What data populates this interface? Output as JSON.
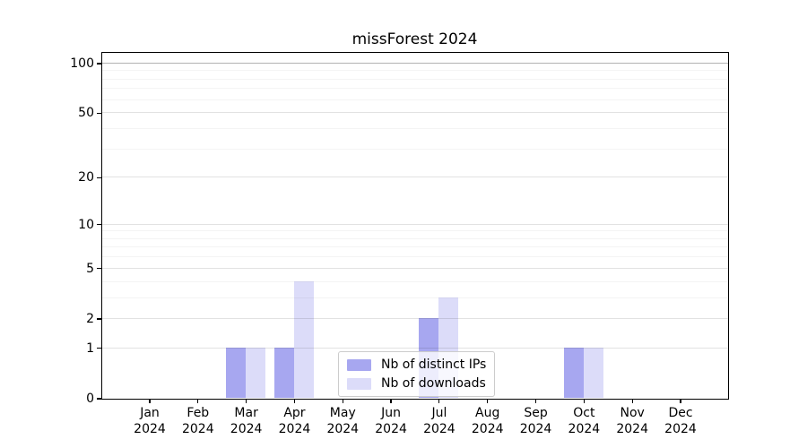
{
  "chart_data": {
    "type": "bar",
    "title": "missForest 2024",
    "x_months": [
      "Jan",
      "Feb",
      "Mar",
      "Apr",
      "May",
      "Jun",
      "Jul",
      "Aug",
      "Sep",
      "Oct",
      "Nov",
      "Dec"
    ],
    "x_year": "2024",
    "series": [
      {
        "name": "Nb of distinct IPs",
        "color": "#a7a7f0",
        "values": [
          0,
          0,
          1,
          1,
          0,
          0,
          2,
          0,
          0,
          1,
          0,
          0
        ]
      },
      {
        "name": "Nb of downloads",
        "color": "#dcdcf9",
        "values": [
          0,
          0,
          1,
          4,
          0,
          0,
          3,
          0,
          0,
          1,
          0,
          0
        ]
      }
    ],
    "y_scale": "log1p",
    "y_ticks": [
      0,
      1,
      2,
      5,
      10,
      20,
      50,
      100
    ],
    "y_minor_gridlines": [
      3,
      4,
      6,
      7,
      8,
      9,
      30,
      40,
      60,
      70,
      80,
      90
    ],
    "ylim": [
      0,
      116
    ],
    "xlabel": "",
    "ylabel": "",
    "grid": "horizontal",
    "legend_position": "lower center"
  }
}
